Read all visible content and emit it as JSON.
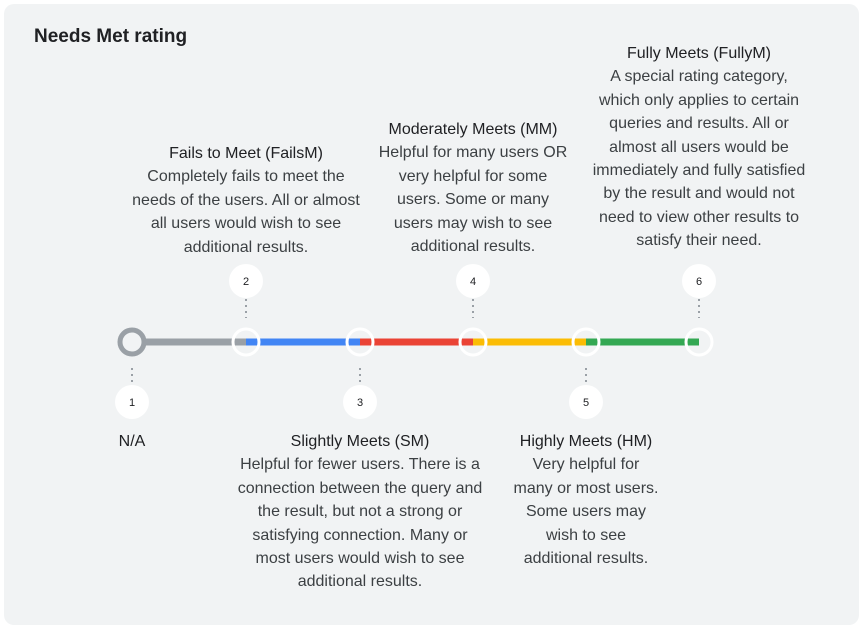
{
  "title": "Needs Met rating",
  "colors": {
    "gray": "#9aa0a6",
    "blue": "#4285f4",
    "red": "#ea4335",
    "yellow": "#fbbc04",
    "green": "#34a853"
  },
  "ratings": [
    {
      "number": "1",
      "name": "N/A",
      "description": ""
    },
    {
      "number": "2",
      "name": "Fails to Meet (FailsM)",
      "description": "Completely fails to meet the needs of the users. All or almost all users would wish to see additional results."
    },
    {
      "number": "3",
      "name": "Slightly Meets (SM)",
      "description": "Helpful for fewer users. There is a connection between the query and the result, but not a strong or satisfying connection. Many or most users would wish to see additional results."
    },
    {
      "number": "4",
      "name": "Moderately Meets (MM)",
      "description": "Helpful for many users OR very helpful for some users. Some or many users may wish to see additional results."
    },
    {
      "number": "5",
      "name": "Highly Meets (HM)",
      "description": "Very helpful for many or most users. Some users may wish to see additional results."
    },
    {
      "number": "6",
      "name": "Fully Meets (FullyM)",
      "description": "A special rating category, which only applies to certain queries and results. All or almost all users would be immediately and fully satisfied by the result and would not need to view other results to satisfy their need."
    }
  ]
}
